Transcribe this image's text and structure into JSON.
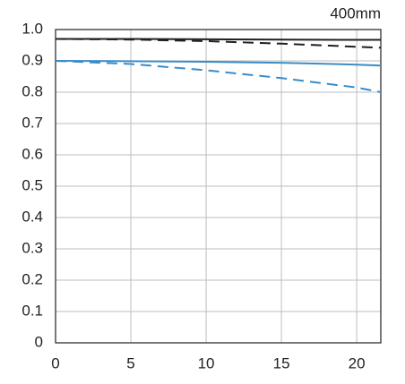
{
  "chart_data": {
    "type": "line",
    "title": "400mm",
    "x": [
      0,
      5,
      10,
      15,
      20,
      21.6
    ],
    "xlim": [
      0,
      21.6
    ],
    "xticks": [
      0,
      5,
      10,
      15,
      20
    ],
    "ylim": [
      0,
      1
    ],
    "yticks": [
      0,
      0.1,
      0.2,
      0.3,
      0.4,
      0.5,
      0.6,
      0.7,
      0.8,
      0.9,
      {
        "value": 1,
        "label": "1.0"
      }
    ],
    "grid": true,
    "series": [
      {
        "color": "#231f20",
        "dashed": false,
        "values": [
          0.97,
          0.97,
          0.969,
          0.968,
          0.967,
          0.967
        ]
      },
      {
        "color": "#231f20",
        "dashed": true,
        "values": [
          0.97,
          0.968,
          0.963,
          0.955,
          0.945,
          0.942
        ]
      },
      {
        "color": "#3a8cc8",
        "dashed": false,
        "values": [
          0.9,
          0.899,
          0.897,
          0.894,
          0.888,
          0.885
        ]
      },
      {
        "color": "#3a8cc8",
        "dashed": true,
        "values": [
          0.9,
          0.89,
          0.87,
          0.845,
          0.815,
          0.8
        ]
      }
    ]
  }
}
